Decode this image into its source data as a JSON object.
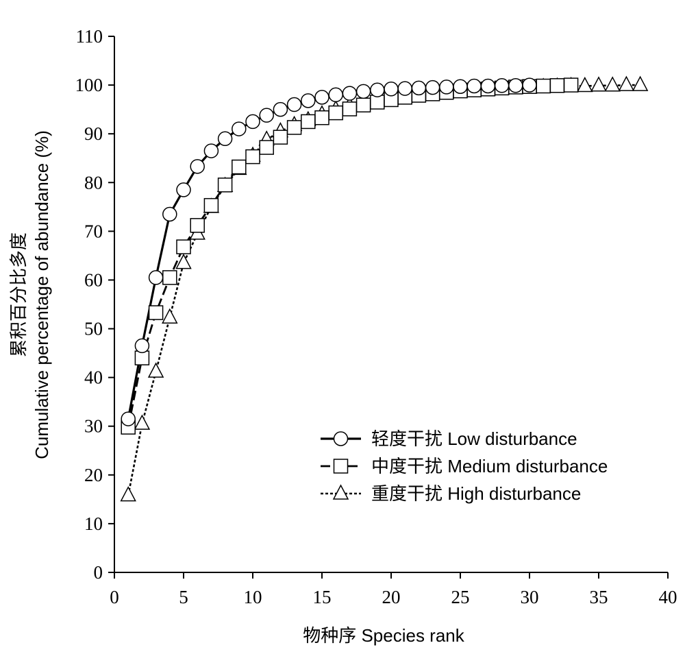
{
  "chart_data": {
    "type": "line",
    "xlabel": "物种序  Species rank",
    "ylabel": [
      "累积百分比多度",
      "Cumulative  percentage  of  abundance (%)"
    ],
    "xlim": [
      0,
      40
    ],
    "ylim": [
      0,
      110
    ],
    "xticks": [
      0,
      5,
      10,
      15,
      20,
      25,
      30,
      35,
      40
    ],
    "yticks": [
      0,
      10,
      20,
      30,
      40,
      50,
      60,
      70,
      80,
      90,
      100,
      110
    ],
    "grid": false,
    "legend_position": "bottom-right",
    "series": [
      {
        "name": "轻度干扰  Low disturbance",
        "marker": "circle",
        "line": "solid",
        "x": [
          1,
          2,
          3,
          4,
          5,
          6,
          7,
          8,
          9,
          10,
          11,
          12,
          13,
          14,
          15,
          16,
          17,
          18,
          19,
          20,
          21,
          22,
          23,
          24,
          25,
          26,
          27,
          28,
          29,
          30
        ],
        "values": [
          31.5,
          46.5,
          60.5,
          73.5,
          78.5,
          83.3,
          86.5,
          89,
          91,
          92.5,
          93.8,
          95,
          96,
          96.8,
          97.5,
          98,
          98.3,
          98.7,
          99,
          99.2,
          99.3,
          99.4,
          99.5,
          99.6,
          99.7,
          99.8,
          99.8,
          99.9,
          99.9,
          100
        ]
      },
      {
        "name": "中度干扰  Medium disturbance",
        "marker": "square",
        "line": "solid",
        "x": [
          1,
          2,
          3,
          4,
          5,
          6,
          7,
          8,
          9,
          10,
          11,
          12,
          13,
          14,
          15,
          16,
          17,
          18,
          19,
          20,
          21,
          22,
          23,
          24,
          25,
          26,
          27,
          28,
          29,
          30,
          31,
          32,
          33
        ],
        "values": [
          29.8,
          44,
          53.3,
          60.5,
          66.8,
          71.2,
          75.3,
          79.5,
          83.2,
          85.3,
          87.2,
          89.3,
          91.3,
          92.5,
          93.3,
          94.3,
          95.1,
          95.9,
          96.5,
          97,
          97.5,
          97.9,
          98.2,
          98.5,
          98.8,
          99,
          99.2,
          99.4,
          99.6,
          99.7,
          99.8,
          99.9,
          100
        ]
      },
      {
        "name": "重度干扰  High disturbance",
        "marker": "triangle",
        "line": "dashed",
        "x": [
          1,
          2,
          3,
          4,
          5,
          6,
          7,
          8,
          9,
          10,
          11,
          12,
          13,
          14,
          15,
          16,
          17,
          18,
          19,
          20,
          21,
          22,
          23,
          24,
          25,
          26,
          27,
          28,
          29,
          30,
          31,
          32,
          33,
          34,
          35,
          36,
          37,
          38
        ],
        "values": [
          15.8,
          30.5,
          41.2,
          52.3,
          63.5,
          69.5,
          75,
          79.3,
          82.8,
          85.5,
          88.8,
          90.5,
          91.8,
          92.8,
          94,
          95,
          95.8,
          96.3,
          96.8,
          97.2,
          97.6,
          98,
          98.3,
          98.5,
          98.8,
          99,
          99.1,
          99.3,
          99.4,
          99.5,
          99.6,
          99.7,
          99.8,
          99.8,
          99.9,
          99.9,
          100,
          100
        ]
      }
    ]
  }
}
